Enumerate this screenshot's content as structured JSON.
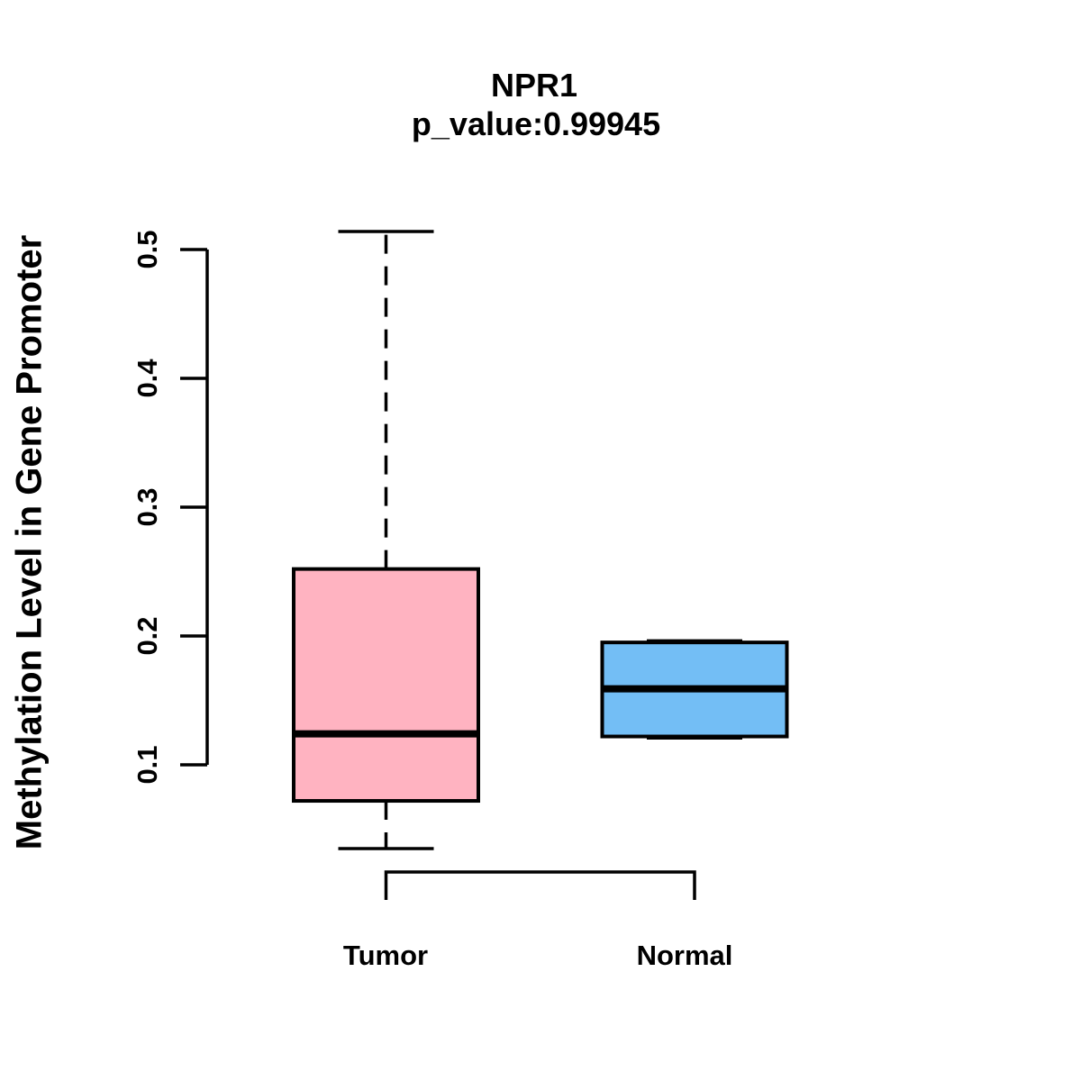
{
  "chart_data": {
    "type": "boxplot",
    "title": "NPR1",
    "subtitle": "p_value:0.99945",
    "ylabel": "Methylation Level in Gene Promoter",
    "xlabel": "",
    "categories": [
      "Tumor",
      "Normal"
    ],
    "y_tick_labels": [
      "0.1",
      "0.2",
      "0.3",
      "0.4",
      "0.5"
    ],
    "grid": "off",
    "legend": "none",
    "series": [
      {
        "name": "Tumor",
        "fill_color": "#FFB3C1",
        "border_color": "#000000",
        "min": 0.035,
        "q1": 0.072,
        "median": 0.124,
        "q3": 0.252,
        "max": 0.514
      },
      {
        "name": "Normal",
        "fill_color": "#73BEF5",
        "border_color": "#000000",
        "min": 0.122,
        "q1": 0.122,
        "median": 0.159,
        "q3": 0.195,
        "max": 0.195
      }
    ],
    "comparison_bracket": {
      "connects": [
        "Tumor",
        "Normal"
      ]
    }
  }
}
